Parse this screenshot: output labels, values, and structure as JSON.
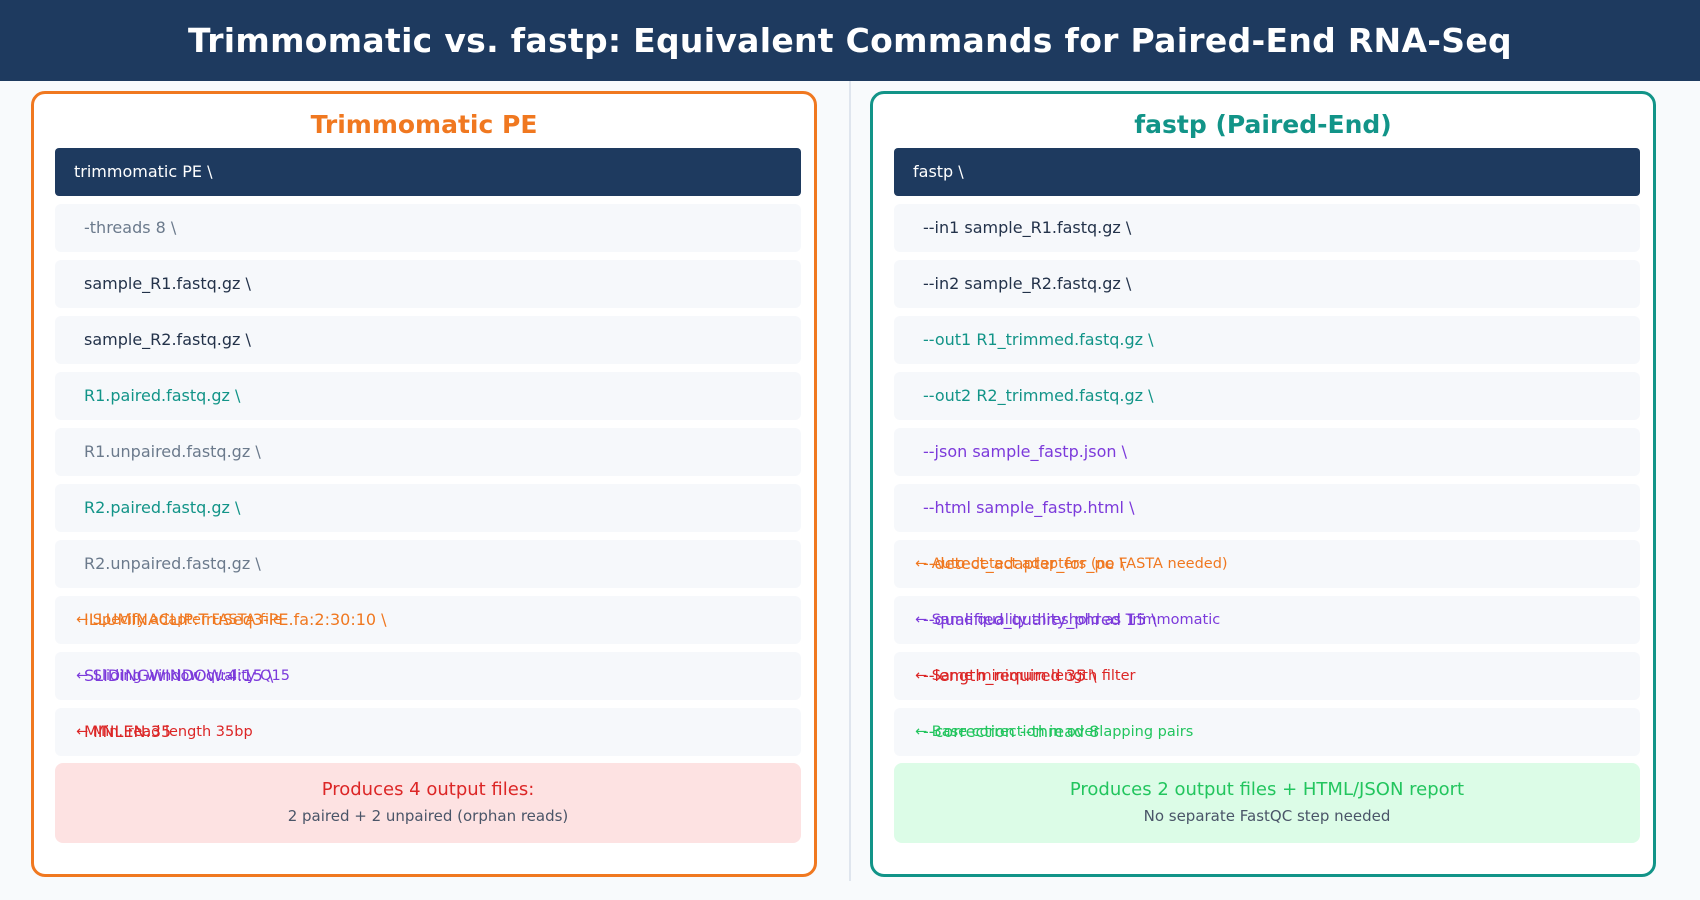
{
  "title": "Trimmomatic vs. fastp: Equivalent Commands for Paired-End RNA-Seq",
  "colors": {
    "header_bg": "#1e3a5f",
    "trimmomatic_accent": "#f07820",
    "fastp_accent": "#129488",
    "purple": "#7c3adb",
    "red": "#dc2626",
    "green": "#22c55e"
  },
  "trimmomatic": {
    "title": "Trimmomatic PE",
    "command": "trimmomatic PE \\",
    "args": [
      {
        "text": "-threads 8 \\",
        "color": "gray"
      },
      {
        "text": "sample_R1.fastq.gz \\",
        "color": "dark"
      },
      {
        "text": "sample_R2.fastq.gz \\",
        "color": "dark"
      },
      {
        "text": "R1.paired.fastq.gz \\",
        "color": "teal"
      },
      {
        "text": "R1.unpaired.fastq.gz \\",
        "color": "gray"
      },
      {
        "text": "R2.paired.fastq.gz \\",
        "color": "teal"
      },
      {
        "text": "R2.unpaired.fastq.gz \\",
        "color": "gray"
      }
    ],
    "overlap_rows": [
      {
        "code": "ILLUMINACLIP:TruSeq3-PE.fa:2:30:10 \\",
        "note": "← Specify adapter FASTA file",
        "color": "orange"
      },
      {
        "code": "SLIDINGWINDOW:4:15 \\",
        "note": "← Sliding window quality Q15",
        "color": "purple"
      },
      {
        "code": "MINLEN:35",
        "note": "← Min. read length 35bp",
        "color": "red"
      }
    ],
    "footer": {
      "main": "Produces 4 output files:",
      "sub": "2 paired + 2 unpaired (orphan reads)"
    }
  },
  "fastp": {
    "title": "fastp (Paired-End)",
    "command": "fastp \\",
    "args": [
      {
        "text": "--in1  sample_R1.fastq.gz \\",
        "color": "dark"
      },
      {
        "text": "--in2  sample_R2.fastq.gz \\",
        "color": "dark"
      },
      {
        "text": "--out1 R1_trimmed.fastq.gz \\",
        "color": "teal"
      },
      {
        "text": "--out2 R2_trimmed.fastq.gz \\",
        "color": "teal"
      },
      {
        "text": "--json sample_fastp.json \\",
        "color": "purple"
      },
      {
        "text": "--html sample_fastp.html \\",
        "color": "purple"
      }
    ],
    "overlap_rows": [
      {
        "code": "--detect_adapter_for_pe \\",
        "note": "← Auto-detect adapters (no FASTA needed)",
        "color": "orange"
      },
      {
        "code": "--qualified_quality_phred 15 \\",
        "note": "← Same quality threshold as Trimmomatic",
        "color": "purple"
      },
      {
        "code": "--length_required 35 \\",
        "note": "← Same minimum length filter",
        "color": "red"
      },
      {
        "code": "--correction --thread 8",
        "note": "← Base correction in overlapping pairs",
        "color": "green"
      }
    ],
    "footer": {
      "main": "Produces 2 output files + HTML/JSON report",
      "sub": "No separate FastQC step needed"
    }
  }
}
